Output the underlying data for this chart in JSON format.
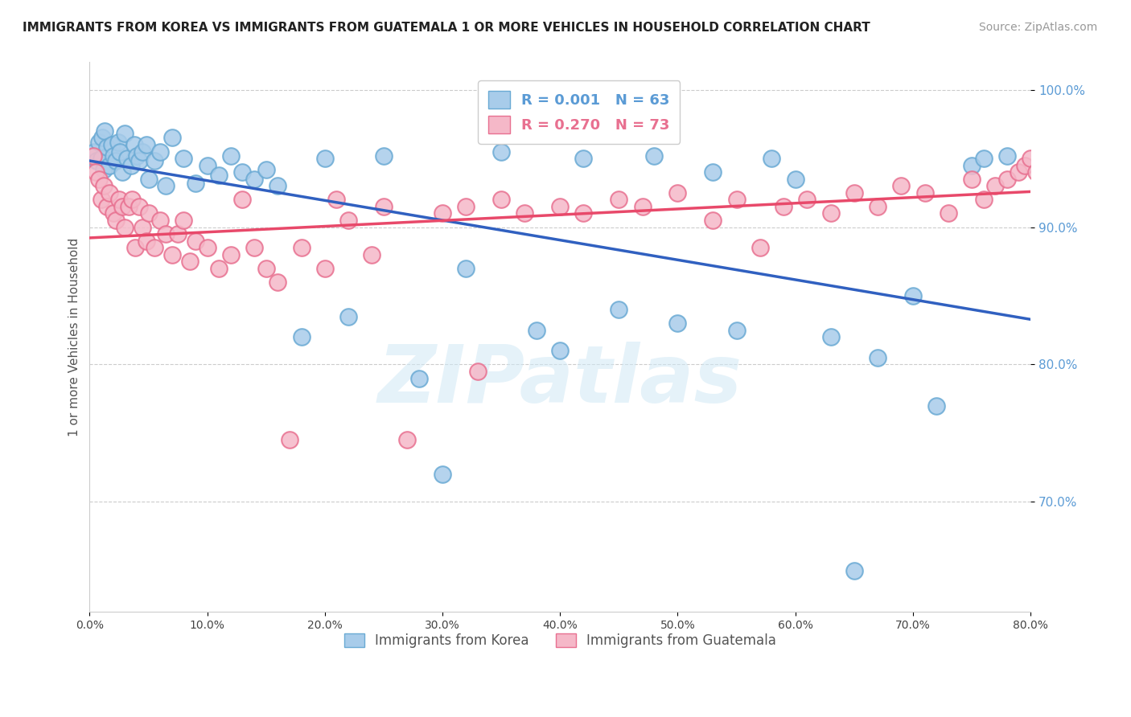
{
  "title": "IMMIGRANTS FROM KOREA VS IMMIGRANTS FROM GUATEMALA 1 OR MORE VEHICLES IN HOUSEHOLD CORRELATION CHART",
  "source": "Source: ZipAtlas.com",
  "ylabel": "1 or more Vehicles in Household",
  "korea_color": "#A8CCEA",
  "korea_edge": "#6AAAD4",
  "guatemala_color": "#F5B8C8",
  "guatemala_edge": "#E87090",
  "korea_R": 0.001,
  "korea_N": 63,
  "guatemala_R": 0.27,
  "guatemala_N": 73,
  "korea_line_color": "#3060C0",
  "guatemala_line_color": "#E8496A",
  "watermark": "ZIPatlas",
  "legend_label_korea": "Immigrants from Korea",
  "legend_label_guatemala": "Immigrants from Guatemala",
  "xmin": 0.0,
  "xmax": 80.0,
  "ymin": 62.0,
  "ymax": 102.0,
  "korea_scatter_x": [
    0.4,
    0.6,
    0.8,
    1.0,
    1.1,
    1.2,
    1.3,
    1.5,
    1.7,
    1.9,
    2.0,
    2.2,
    2.4,
    2.6,
    2.8,
    3.0,
    3.2,
    3.5,
    3.8,
    4.0,
    4.2,
    4.5,
    4.8,
    5.0,
    5.5,
    6.0,
    6.5,
    7.0,
    8.0,
    9.0,
    10.0,
    11.0,
    12.0,
    13.0,
    14.0,
    15.0,
    16.0,
    18.0,
    20.0,
    22.0,
    25.0,
    28.0,
    30.0,
    32.0,
    35.0,
    38.0,
    40.0,
    42.0,
    45.0,
    48.0,
    50.0,
    53.0,
    55.0,
    58.0,
    60.0,
    63.0,
    65.0,
    67.0,
    70.0,
    72.0,
    75.0,
    76.0,
    78.0
  ],
  "korea_scatter_y": [
    95.5,
    94.8,
    96.2,
    95.0,
    96.5,
    94.2,
    97.0,
    95.8,
    94.5,
    96.0,
    95.2,
    94.8,
    96.2,
    95.5,
    94.0,
    96.8,
    95.0,
    94.5,
    96.0,
    95.2,
    94.8,
    95.5,
    96.0,
    93.5,
    94.8,
    95.5,
    93.0,
    96.5,
    95.0,
    93.2,
    94.5,
    93.8,
    95.2,
    94.0,
    93.5,
    94.2,
    93.0,
    82.0,
    95.0,
    83.5,
    95.2,
    79.0,
    72.0,
    87.0,
    95.5,
    82.5,
    81.0,
    95.0,
    84.0,
    95.2,
    83.0,
    94.0,
    82.5,
    95.0,
    93.5,
    82.0,
    65.0,
    80.5,
    85.0,
    77.0,
    94.5,
    95.0,
    95.2
  ],
  "guatemala_scatter_x": [
    0.3,
    0.5,
    0.8,
    1.0,
    1.2,
    1.5,
    1.7,
    2.0,
    2.2,
    2.5,
    2.8,
    3.0,
    3.3,
    3.6,
    3.9,
    4.2,
    4.5,
    4.8,
    5.0,
    5.5,
    6.0,
    6.5,
    7.0,
    7.5,
    8.0,
    8.5,
    9.0,
    10.0,
    11.0,
    12.0,
    13.0,
    14.0,
    15.0,
    16.0,
    17.0,
    18.0,
    20.0,
    21.0,
    22.0,
    24.0,
    25.0,
    27.0,
    30.0,
    32.0,
    33.0,
    35.0,
    37.0,
    40.0,
    42.0,
    45.0,
    47.0,
    50.0,
    53.0,
    55.0,
    57.0,
    59.0,
    61.0,
    63.0,
    65.0,
    67.0,
    69.0,
    71.0,
    73.0,
    75.0,
    76.0,
    77.0,
    78.0,
    79.0,
    79.5,
    80.0,
    80.5,
    81.0,
    81.5
  ],
  "guatemala_scatter_y": [
    95.2,
    94.0,
    93.5,
    92.0,
    93.0,
    91.5,
    92.5,
    91.0,
    90.5,
    92.0,
    91.5,
    90.0,
    91.5,
    92.0,
    88.5,
    91.5,
    90.0,
    89.0,
    91.0,
    88.5,
    90.5,
    89.5,
    88.0,
    89.5,
    90.5,
    87.5,
    89.0,
    88.5,
    87.0,
    88.0,
    92.0,
    88.5,
    87.0,
    86.0,
    74.5,
    88.5,
    87.0,
    92.0,
    90.5,
    88.0,
    91.5,
    74.5,
    91.0,
    91.5,
    79.5,
    92.0,
    91.0,
    91.5,
    91.0,
    92.0,
    91.5,
    92.5,
    90.5,
    92.0,
    88.5,
    91.5,
    92.0,
    91.0,
    92.5,
    91.5,
    93.0,
    92.5,
    91.0,
    93.5,
    92.0,
    93.0,
    93.5,
    94.0,
    94.5,
    95.0,
    94.0,
    95.5,
    96.0
  ]
}
